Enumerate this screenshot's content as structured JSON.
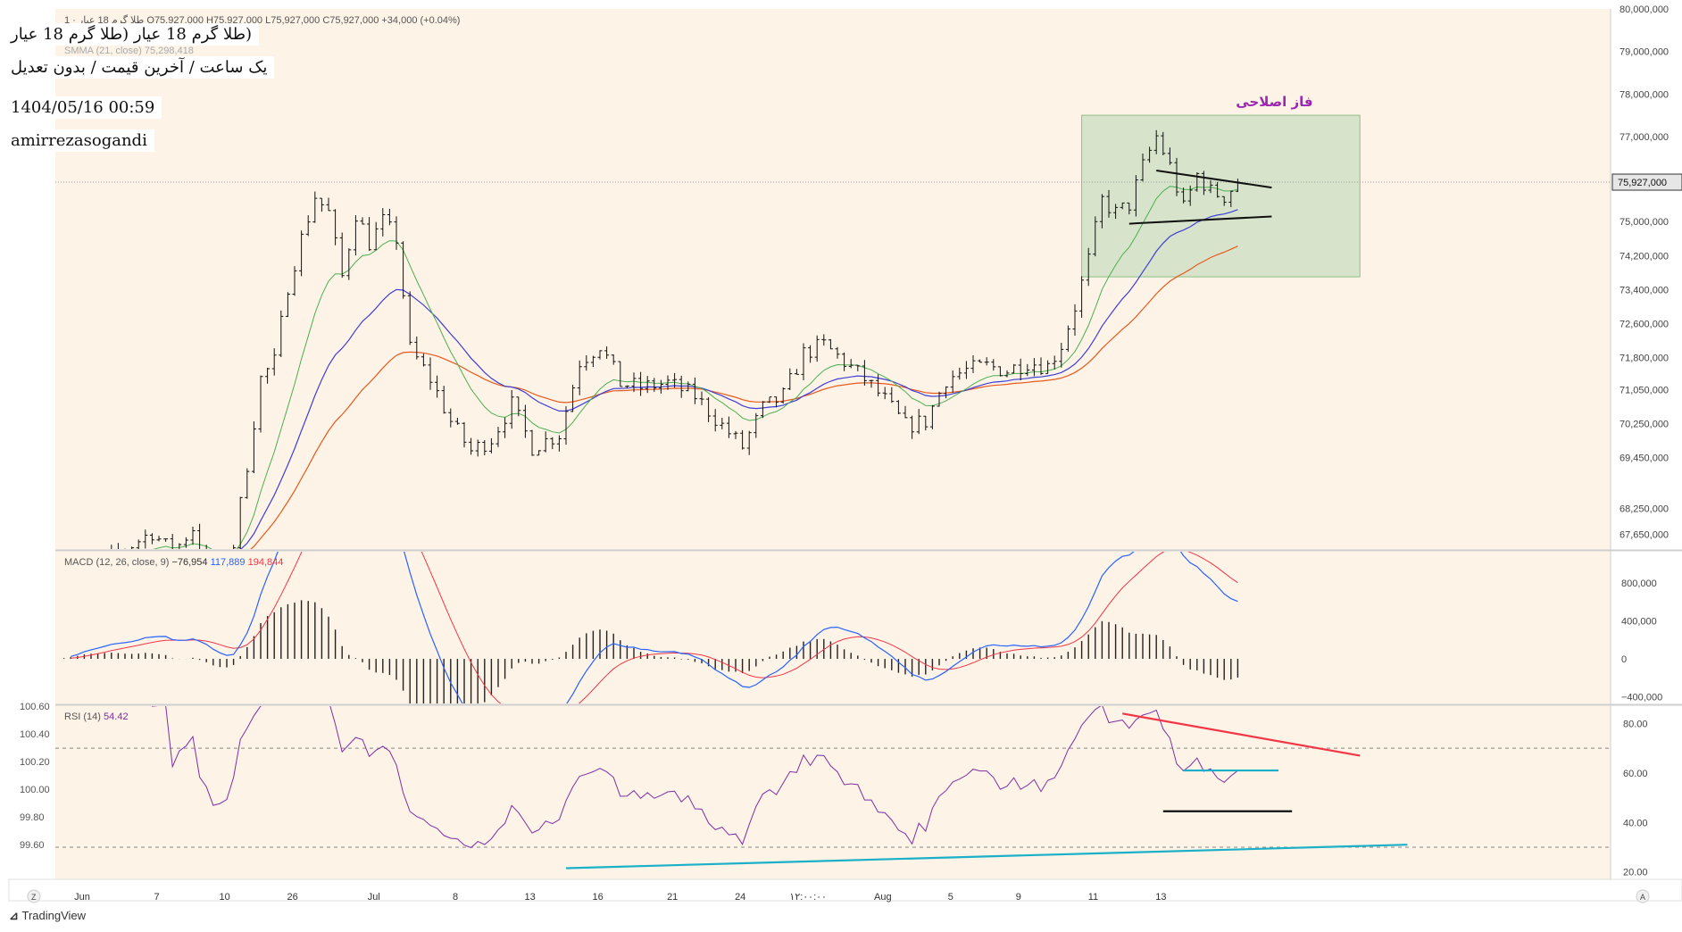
{
  "header": {
    "ohlc_text": "1 · طلا گرم 18 عیار  O75,927,000  H75,927,000  L75,927,000  C75,927,000  +34,000 (+0.04%)",
    "smma_text": "SMMA (21, close)  75,298,418"
  },
  "annotations": {
    "title_line": "(طلا گرم 18 عیار (طلا گرم 18 عیار",
    "subtitle_line": "یک ساعت / آخرین قیمت / بدون تعدیل",
    "datetime": "1404/05/16 00:59",
    "author": "amirrezasogandi",
    "box_label": "فاز اصلاحی"
  },
  "macd_legend": {
    "label": "MACD (12, 26, close, 9)",
    "hist": "−76,954",
    "macd": "117,889",
    "signal": "194,844"
  },
  "rsi_legend": {
    "label": "RSI (14)",
    "value": "54.42"
  },
  "colors": {
    "background": "#fdf3e7",
    "candle": "#111111",
    "ma_green": "#4caf50",
    "ma_blue": "#3f3fd6",
    "ma_orange": "#e65a1e",
    "macd_line": "#2962ff",
    "signal_line": "#f23645",
    "rsi_line": "#7e2fa5",
    "box_fill": "#c9dfc2",
    "box_label": "#9c27b0",
    "rsi_trend_red": "#f23645",
    "rsi_trend_cyan": "#1ab0c8",
    "last_price_tag": "#e6e6e6"
  },
  "branding": {
    "logo": "TradingView"
  },
  "axis_buttons": {
    "left": "Z",
    "right": "A"
  },
  "chart_data": [
    {
      "type": "candlestick",
      "name": "price",
      "y_ticks": [
        80000000,
        79000000,
        78000000,
        77000000,
        75000000,
        74200000,
        73400000,
        72600000,
        71800000,
        71050000,
        70250000,
        69450000,
        68250000,
        67650000
      ],
      "y_tick_labels": [
        "80,000,000",
        "79,000,000",
        "78,000,000",
        "77,000,000",
        "75,000,000",
        "74,200,000",
        "73,400,000",
        "72,600,000",
        "71,800,000",
        "71,050,000",
        "70,250,000",
        "69,450,000",
        "68,250,000",
        "67,650,000"
      ],
      "last_price": 75927000,
      "last_price_label": "75,927,000",
      "ylim": [
        67300000,
        80000000
      ],
      "x_ticks": [
        "Jun",
        "7",
        "10",
        "26",
        "Jul",
        "8",
        "13",
        "16",
        "21",
        "24",
        "۱۲:۰۰:۰۰",
        "Aug",
        "5",
        "9",
        "11",
        "13"
      ],
      "anchors": [
        {
          "t": 0,
          "p": 66800000
        },
        {
          "t": 8,
          "p": 67100000
        },
        {
          "t": 14,
          "p": 67700000
        },
        {
          "t": 17,
          "p": 67200000
        },
        {
          "t": 20,
          "p": 67800000
        },
        {
          "t": 22,
          "p": 67000000
        },
        {
          "t": 24,
          "p": 66700000
        },
        {
          "t": 26,
          "p": 67400000
        },
        {
          "t": 28,
          "p": 69300000
        },
        {
          "t": 30,
          "p": 71300000
        },
        {
          "t": 32,
          "p": 71700000
        },
        {
          "t": 34,
          "p": 73500000
        },
        {
          "t": 36,
          "p": 74600000
        },
        {
          "t": 38,
          "p": 75600000
        },
        {
          "t": 40,
          "p": 75200000
        },
        {
          "t": 42,
          "p": 73700000
        },
        {
          "t": 44,
          "p": 75200000
        },
        {
          "t": 46,
          "p": 74500000
        },
        {
          "t": 48,
          "p": 75000000
        },
        {
          "t": 50,
          "p": 74600000
        },
        {
          "t": 52,
          "p": 72000000
        },
        {
          "t": 55,
          "p": 71300000
        },
        {
          "t": 58,
          "p": 70300000
        },
        {
          "t": 61,
          "p": 69600000
        },
        {
          "t": 64,
          "p": 69900000
        },
        {
          "t": 67,
          "p": 70700000
        },
        {
          "t": 70,
          "p": 69700000
        },
        {
          "t": 74,
          "p": 70000000
        },
        {
          "t": 77,
          "p": 71700000
        },
        {
          "t": 80,
          "p": 72100000
        },
        {
          "t": 83,
          "p": 71200000
        },
        {
          "t": 86,
          "p": 71100000
        },
        {
          "t": 90,
          "p": 71200000
        },
        {
          "t": 94,
          "p": 70900000
        },
        {
          "t": 98,
          "p": 70200000
        },
        {
          "t": 101,
          "p": 69700000
        },
        {
          "t": 104,
          "p": 70600000
        },
        {
          "t": 107,
          "p": 70900000
        },
        {
          "t": 110,
          "p": 71900000
        },
        {
          "t": 113,
          "p": 72100000
        },
        {
          "t": 116,
          "p": 71700000
        },
        {
          "t": 119,
          "p": 71300000
        },
        {
          "t": 122,
          "p": 70800000
        },
        {
          "t": 125,
          "p": 70200000
        },
        {
          "t": 128,
          "p": 70300000
        },
        {
          "t": 131,
          "p": 71300000
        },
        {
          "t": 134,
          "p": 71500000
        },
        {
          "t": 137,
          "p": 71600000
        },
        {
          "t": 140,
          "p": 71500000
        },
        {
          "t": 143,
          "p": 71700000
        },
        {
          "t": 146,
          "p": 71600000
        },
        {
          "t": 148,
          "p": 72100000
        },
        {
          "t": 150,
          "p": 73000000
        },
        {
          "t": 152,
          "p": 74100000
        },
        {
          "t": 154,
          "p": 75500000
        },
        {
          "t": 156,
          "p": 75200000
        },
        {
          "t": 158,
          "p": 75400000
        },
        {
          "t": 160,
          "p": 76300000
        },
        {
          "t": 162,
          "p": 77000000
        },
        {
          "t": 164,
          "p": 76300000
        },
        {
          "t": 166,
          "p": 75300000
        },
        {
          "t": 168,
          "p": 76100000
        },
        {
          "t": 170,
          "p": 75700000
        },
        {
          "t": 172,
          "p": 75600000
        },
        {
          "t": 174,
          "p": 75927000
        }
      ],
      "trendlines": [
        {
          "from": [
            162,
            76200000
          ],
          "to": [
            179,
            75800000
          ]
        },
        {
          "from": [
            158,
            74950000
          ],
          "to": [
            179,
            75120000
          ]
        }
      ],
      "box": {
        "from": [
          151,
          77500000
        ],
        "to": [
          192,
          73700000
        ]
      }
    },
    {
      "type": "macd",
      "name": "MACD",
      "y_ticks": [
        800000,
        400000,
        0,
        -400000
      ],
      "y_tick_labels": [
        "800,000",
        "400,000",
        "0",
        "−400,000"
      ],
      "ylim": [
        -470000,
        1130000
      ]
    },
    {
      "type": "line",
      "name": "RSI",
      "y_ticks": [
        80,
        60,
        40,
        20
      ],
      "y_tick_labels": [
        "80.00",
        "60.00",
        "40.00",
        "20.00"
      ],
      "left_ticks": [
        "100.60",
        "100.40",
        "100.20",
        "100.00",
        "99.80",
        "99.60"
      ],
      "dashed_levels": [
        70,
        30
      ],
      "ylim": [
        17,
        87
      ],
      "trendlines": [
        {
          "color": "red",
          "from": [
            157,
            84
          ],
          "to": [
            192,
            67
          ]
        },
        {
          "color": "cyan",
          "from": [
            166,
            61
          ],
          "to": [
            180,
            61
          ]
        },
        {
          "color": "black",
          "from": [
            163,
            44.5
          ],
          "to": [
            182,
            44.5
          ]
        },
        {
          "color": "cyan",
          "from": [
            75,
            21.5
          ],
          "to": [
            199,
            31
          ]
        }
      ]
    }
  ]
}
